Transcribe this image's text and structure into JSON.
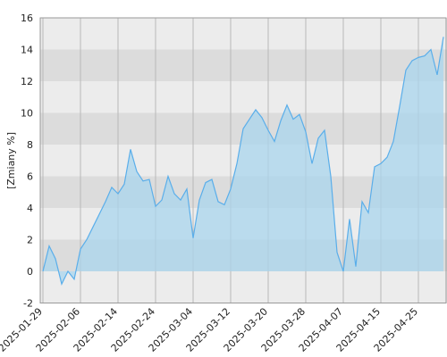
{
  "chart_data": {
    "type": "area",
    "ylabel": "[Zmiany %]",
    "categories": [
      "2025-01-29",
      null,
      null,
      null,
      null,
      null,
      "2025-02-06",
      null,
      null,
      null,
      null,
      null,
      "2025-02-14",
      null,
      null,
      null,
      null,
      null,
      "2025-02-24",
      null,
      null,
      null,
      null,
      null,
      "2025-03-04",
      null,
      null,
      null,
      null,
      null,
      "2025-03-12",
      null,
      null,
      null,
      null,
      null,
      "2025-03-20",
      null,
      null,
      null,
      null,
      null,
      "2025-03-28",
      null,
      null,
      null,
      null,
      null,
      "2025-04-07",
      null,
      null,
      null,
      null,
      null,
      "2025-04-15",
      null,
      null,
      null,
      null,
      null,
      "2025-04-25",
      null,
      null,
      null,
      null
    ],
    "values": [
      0,
      1.6,
      0.8,
      -0.8,
      0,
      -0.5,
      1.4,
      2.0,
      2.8,
      3.6,
      4.4,
      5.3,
      4.9,
      5.5,
      7.7,
      6.3,
      5.7,
      5.8,
      4.1,
      4.5,
      6.0,
      4.9,
      4.5,
      5.2,
      2.1,
      4.5,
      5.6,
      5.8,
      4.4,
      4.2,
      5.2,
      6.8,
      9.0,
      9.6,
      10.2,
      9.7,
      8.9,
      8.2,
      9.5,
      10.5,
      9.6,
      9.9,
      8.8,
      6.8,
      8.4,
      8.9,
      6.0,
      1.2,
      0.0,
      3.3,
      0.3,
      4.4,
      3.7,
      6.6,
      6.8,
      7.2,
      8.2,
      10.4,
      12.7,
      13.3,
      13.5,
      13.6,
      14.0,
      12.4,
      14.8
    ],
    "color": "#5aaeea",
    "ylim": [
      -2,
      16
    ],
    "yticks": [
      -2,
      0,
      2,
      4,
      6,
      8,
      10,
      12,
      14,
      16
    ],
    "grid": true
  }
}
